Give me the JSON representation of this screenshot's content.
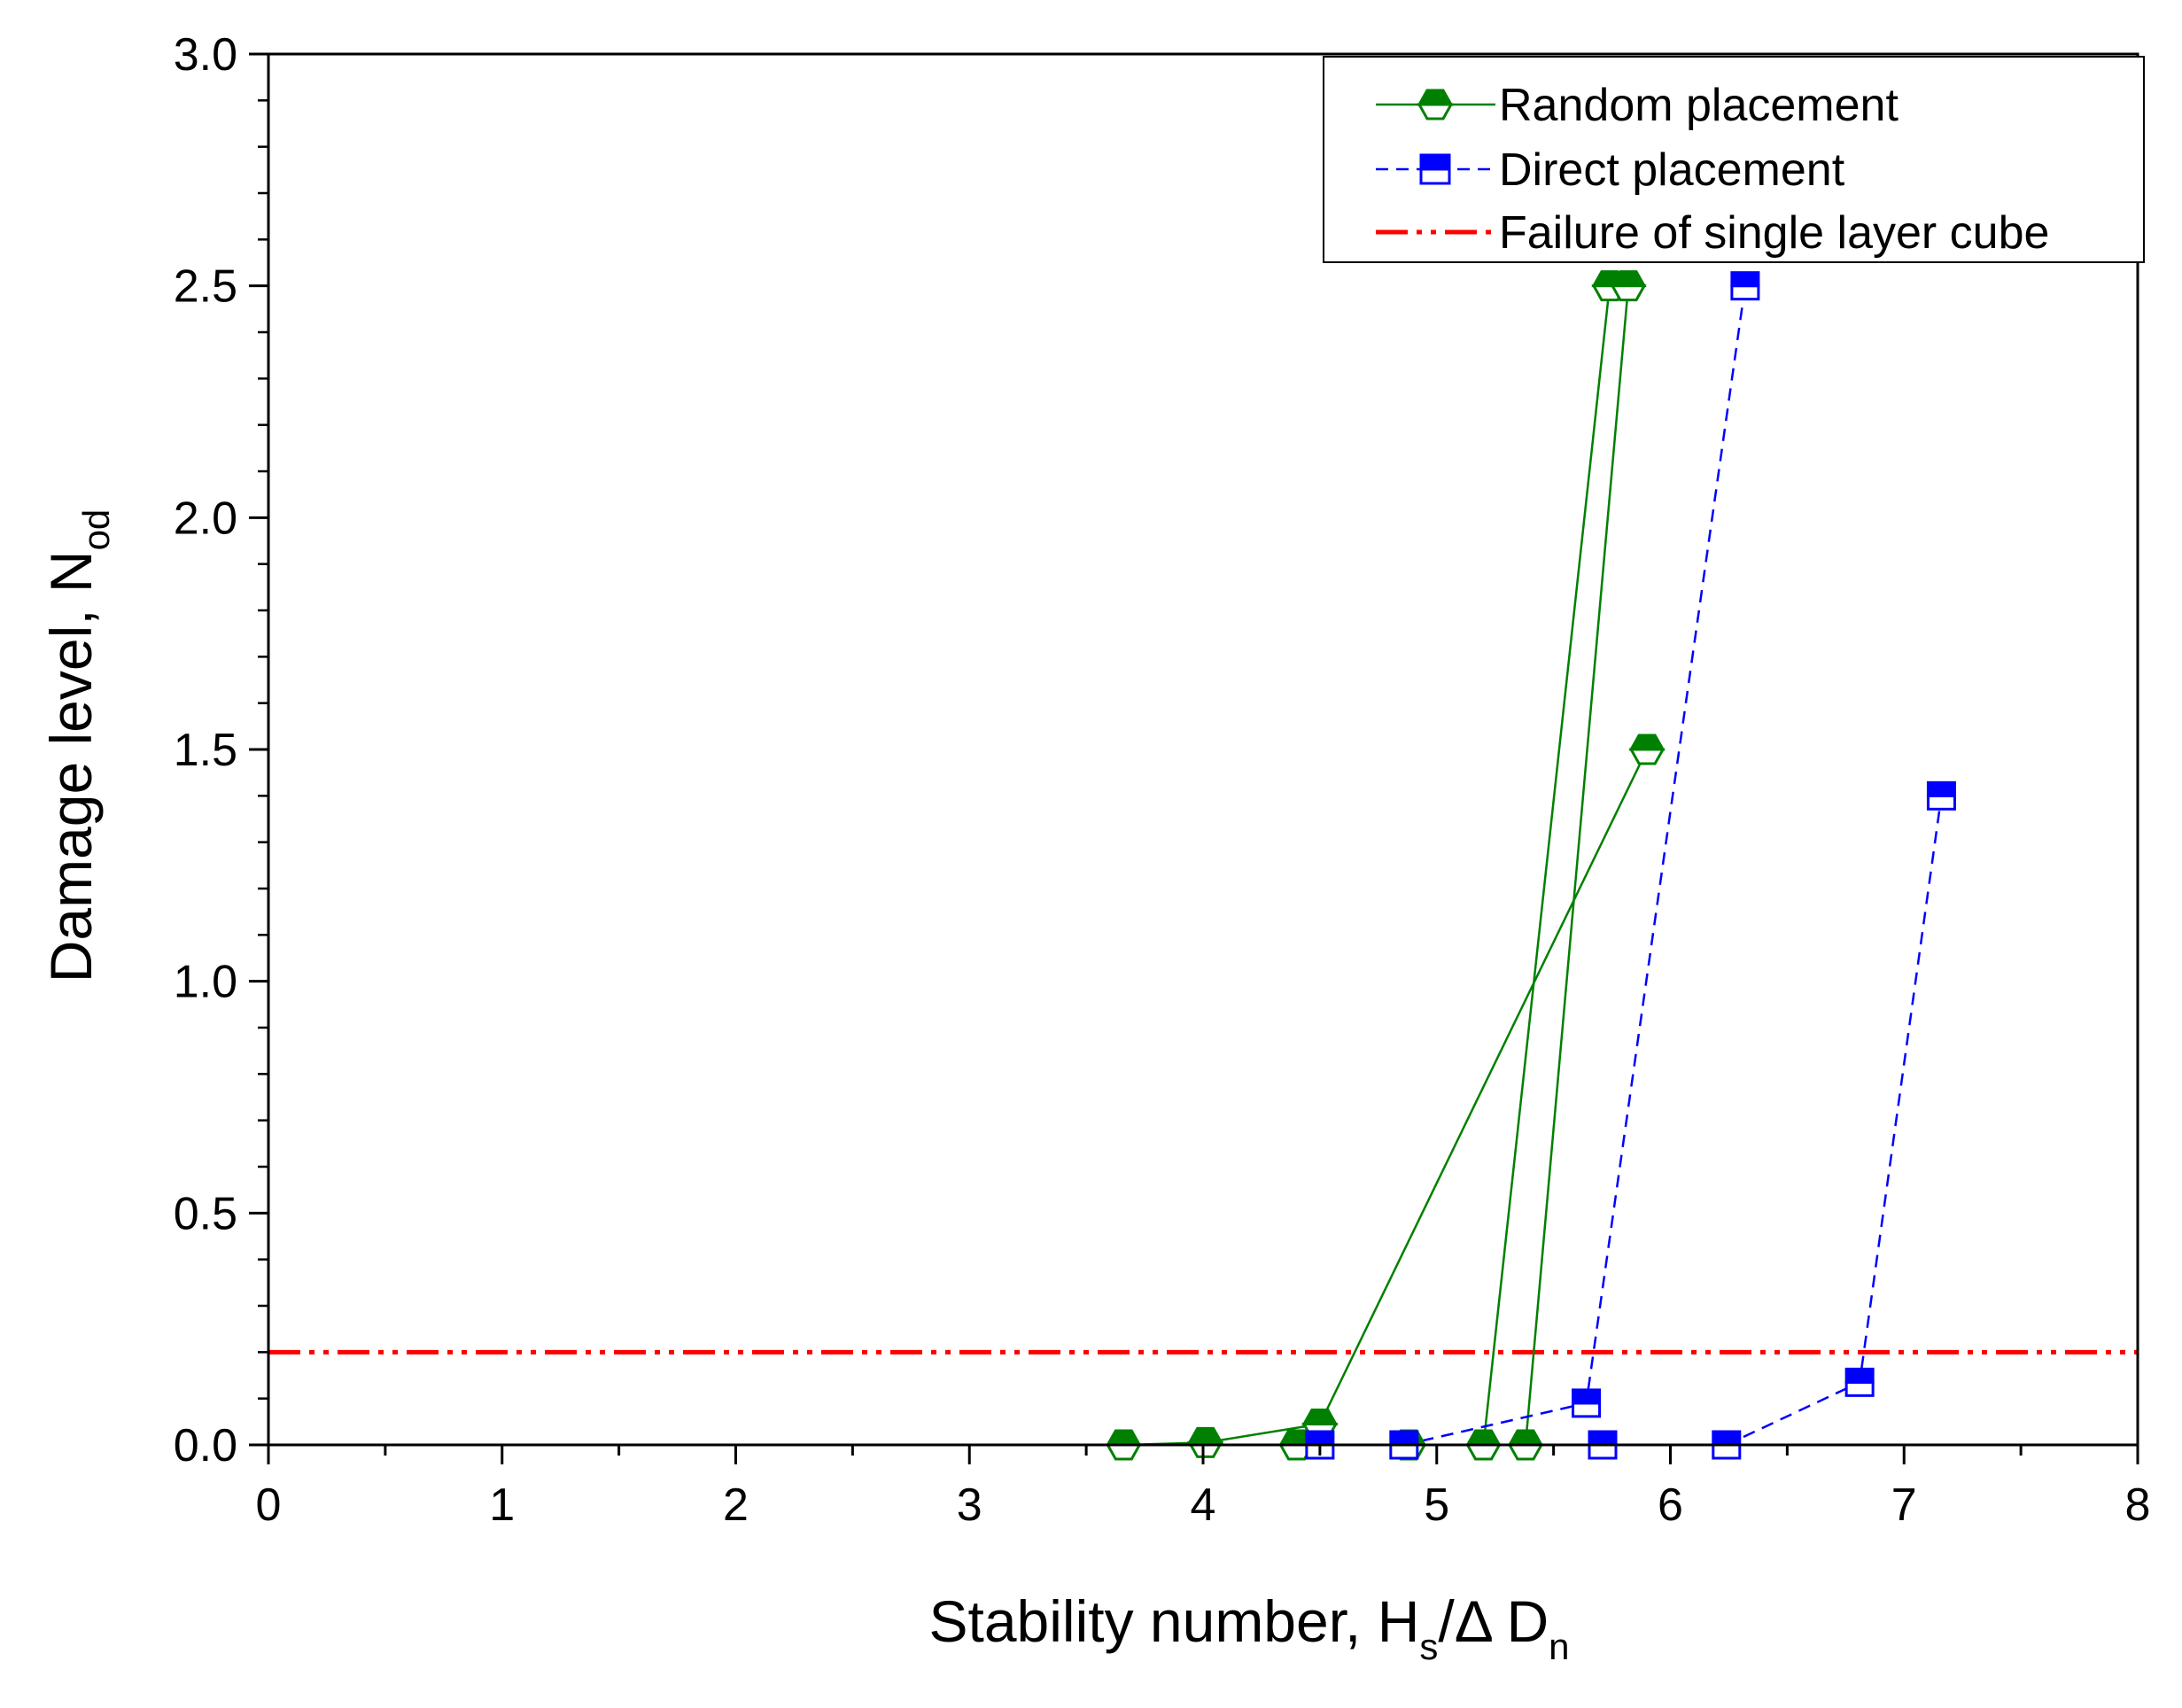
{
  "chart_data": {
    "type": "line",
    "xlabel": {
      "prefix": "Stability number, H",
      "sub1": "s",
      "middle": "/Δ D",
      "sub2": "n"
    },
    "ylabel": {
      "prefix": "Damage level, N",
      "sub": "od"
    },
    "xlim": [
      0,
      8
    ],
    "ylim": [
      0,
      3.0
    ],
    "x_ticks": [
      "0",
      "1",
      "2",
      "3",
      "4",
      "5",
      "6",
      "7",
      "8"
    ],
    "y_ticks": [
      "0.0",
      "0.5",
      "1.0",
      "1.5",
      "2.0",
      "2.5",
      "3.0"
    ],
    "grid": false,
    "legend_position": "top-right",
    "series": [
      {
        "name": "Random placement",
        "color": "#008000",
        "line_style": "solid",
        "marker": "hexagon-half-filled",
        "segments": [
          [
            [
              3.66,
              0.0
            ],
            [
              4.01,
              0.005
            ],
            [
              4.5,
              0.045
            ],
            [
              5.9,
              1.5
            ]
          ],
          [
            [
              4.4,
              0.0
            ],
            [
              4.88,
              0.0
            ],
            [
              5.2,
              0.0
            ],
            [
              5.74,
              2.5
            ]
          ],
          [
            [
              5.38,
              0.0
            ],
            [
              5.82,
              2.5
            ]
          ]
        ]
      },
      {
        "name": "Direct placement",
        "color": "#0000ff",
        "line_style": "dashed",
        "marker": "square-half-filled",
        "segments": [
          [
            [
              4.5,
              0.0
            ],
            [
              4.86,
              0.0
            ],
            [
              5.64,
              0.09
            ],
            [
              6.32,
              2.5
            ]
          ],
          [
            [
              5.71,
              0.0
            ],
            [
              6.24,
              0.0
            ],
            [
              6.81,
              0.135
            ],
            [
              7.16,
              1.4
            ]
          ]
        ]
      },
      {
        "name": "Failure of single layer cube",
        "color": "#ff0000",
        "line_style": "dash-dot-dot",
        "marker": "none",
        "y_constant": 0.2
      }
    ]
  }
}
